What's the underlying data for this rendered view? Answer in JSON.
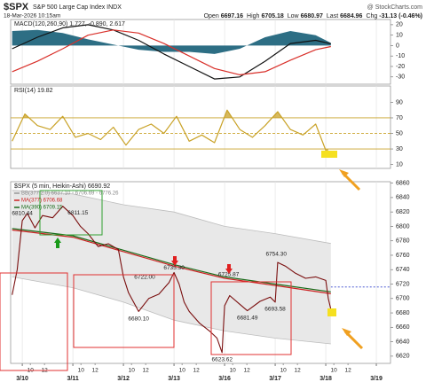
{
  "header": {
    "symbol": "$SPX",
    "name": "S&P 500 Large Cap Index INDX",
    "date": "18-Mar-2026 10:15am",
    "source": "@ StockCharts.com",
    "quote": [
      {
        "label": "Open",
        "value": 6697.16
      },
      {
        "label": "High",
        "value": 6705.18
      },
      {
        "label": "Low",
        "value": 6680.97
      },
      {
        "label": "Last",
        "value": 6684.96
      },
      {
        "label": "Chg",
        "value": -31.13
      }
    ],
    "chg_pct": "(-0.46%)"
  },
  "chart_data": [
    {
      "type": "line",
      "title": "MACD(120,260,90) 1.727, -0.890, 2.617",
      "x": [
        -0.2,
        0.3,
        0.8,
        1.3,
        1.8,
        2.3,
        2.8,
        3.3,
        3.8,
        4.3,
        4.8,
        5.3,
        5.8,
        6.1
      ],
      "ylim": [
        -37,
        25
      ],
      "yticks": [
        20,
        10,
        0,
        -10,
        -20,
        -30
      ],
      "grid": false,
      "series": [
        {
          "kind": "histogram",
          "color": "#2d6e84",
          "values": [
            14,
            15,
            12,
            6,
            1,
            -4,
            -6,
            -6,
            -8,
            -3,
            8,
            14,
            10,
            2.617
          ]
        },
        {
          "kind": "line",
          "color": "#111111",
          "values": [
            -3,
            8,
            17,
            20,
            15,
            5,
            -8,
            -20,
            -32,
            -30,
            -15,
            2,
            5,
            1.727
          ]
        },
        {
          "kind": "line",
          "color": "#d9302a",
          "values": [
            -25,
            -15,
            -3,
            10,
            15,
            12,
            2,
            -10,
            -22,
            -28,
            -25,
            -14,
            -4,
            -0.89
          ]
        }
      ]
    },
    {
      "type": "line",
      "title": "RSI(14) 19.82",
      "x": [
        -0.2,
        0.05,
        0.3,
        0.55,
        0.8,
        1.05,
        1.3,
        1.55,
        1.8,
        2.05,
        2.3,
        2.55,
        2.8,
        3.05,
        3.3,
        3.55,
        3.8,
        4.05,
        4.3,
        4.55,
        4.8,
        5.05,
        5.3,
        5.55,
        5.8,
        6.05
      ],
      "ylim": [
        5,
        111
      ],
      "yticks": [
        90,
        70,
        50,
        30,
        10
      ],
      "grid": false,
      "levels": [
        {
          "value": 70,
          "style": "solid"
        },
        {
          "value": 50,
          "style": "dashed"
        },
        {
          "value": 30,
          "style": "solid"
        }
      ],
      "level_color": "#c9a227",
      "series": [
        {
          "kind": "oscillator",
          "color": "#c9a227",
          "values": [
            40,
            75,
            60,
            55,
            72,
            45,
            50,
            42,
            58,
            35,
            55,
            62,
            50,
            72,
            40,
            48,
            38,
            80,
            55,
            45,
            60,
            78,
            55,
            48,
            62,
            19.82
          ]
        }
      ]
    },
    {
      "type": "line",
      "title": "$SPX (5 min, Heikin-Ashi) 6690.92",
      "xlim": [
        -0.23,
        7.28
      ],
      "xticks": [
        {
          "value": 0,
          "label": "3/10"
        },
        {
          "value": 1,
          "label": "3/11"
        },
        {
          "value": 2,
          "label": "3/12"
        },
        {
          "value": 3,
          "label": "3/13"
        },
        {
          "value": 4,
          "label": "3/16"
        },
        {
          "value": 5,
          "label": "3/17"
        },
        {
          "value": 6,
          "label": "3/18"
        },
        {
          "value": 7,
          "label": "3/19"
        }
      ],
      "minor_xticks": [
        {
          "value": 0.16,
          "label": "10"
        },
        {
          "value": 0.44,
          "label": "12"
        },
        {
          "value": 1.16,
          "label": "10"
        },
        {
          "value": 1.44,
          "label": "12"
        },
        {
          "value": 2.16,
          "label": "10"
        },
        {
          "value": 2.44,
          "label": "12"
        },
        {
          "value": 3.16,
          "label": "10"
        },
        {
          "value": 3.44,
          "label": "12"
        },
        {
          "value": 4.16,
          "label": "10"
        },
        {
          "value": 4.44,
          "label": "12"
        },
        {
          "value": 5.16,
          "label": "10"
        },
        {
          "value": 5.44,
          "label": "12"
        },
        {
          "value": 6.16,
          "label": "10"
        },
        {
          "value": 6.44,
          "label": "12"
        }
      ],
      "ylim": [
        6610,
        6862
      ],
      "yticks": [
        6860,
        6840,
        6820,
        6800,
        6780,
        6760,
        6740,
        6720,
        6700,
        6680,
        6660,
        6640,
        6620
      ],
      "grid": false,
      "x": [
        -0.2,
        -0.1,
        0,
        0.1,
        0.25,
        0.4,
        0.6,
        0.8,
        1.0,
        1.15,
        1.3,
        1.5,
        1.7,
        1.9,
        2.0,
        2.1,
        2.3,
        2.5,
        2.7,
        2.9,
        3.0,
        3.1,
        3.2,
        3.3,
        3.5,
        3.7,
        3.85,
        3.95,
        4.0,
        4.1,
        4.3,
        4.45,
        4.7,
        4.9,
        5.0,
        5.05,
        5.2,
        5.4,
        5.6,
        5.8,
        6.0,
        6.05,
        6.1
      ],
      "ref_line": {
        "value": 6716,
        "color": "#3344cc"
      },
      "series": [
        {
          "kind": "band",
          "name": "BB(377,2.0) 6637.10 - 6706.69 - 6776.26",
          "color": "#bdbdbd",
          "fill": "#e8e8e8",
          "x": [
            -0.2,
            1,
            2,
            3,
            4,
            5,
            6.1
          ],
          "upper": [
            6850,
            6845,
            6830,
            6820,
            6800,
            6790,
            6776.26
          ],
          "lower": [
            6730,
            6715,
            6695,
            6670,
            6655,
            6645,
            6637.1
          ]
        },
        {
          "kind": "line",
          "name": "MA(377) 6706.68",
          "color": "#cc2222",
          "x": [
            -0.2,
            1,
            2,
            3,
            4,
            5,
            6.1
          ],
          "values": [
            6795,
            6785,
            6765,
            6745,
            6728,
            6718,
            6706.68
          ]
        },
        {
          "kind": "line",
          "name": "MA(390) 6709.15",
          "color": "#1a6b1a",
          "x": [
            -0.2,
            1,
            2,
            3,
            4,
            5,
            6.1
          ],
          "values": [
            6797,
            6787,
            6767,
            6747,
            6730,
            6720,
            6709.15
          ]
        },
        {
          "kind": "price",
          "color": "#7a0e0e",
          "values": [
            6705,
            6740,
            6808,
            6818,
            6798,
            6815,
            6812,
            6828,
            6815,
            6800,
            6790,
            6772,
            6776,
            6768,
            6730,
            6708,
            6682,
            6700,
            6706,
            6722,
            6736,
            6720,
            6695,
            6682,
            6666,
            6655,
            6645,
            6625,
            6690,
            6704,
            6692,
            6683,
            6696,
            6702,
            6695,
            6750,
            6745,
            6735,
            6728,
            6730,
            6725,
            6700,
            6685
          ]
        }
      ],
      "annotations": [
        {
          "x": 0,
          "value": 6810.44,
          "label": "6810.44",
          "side": "above"
        },
        {
          "x": 1.1,
          "value": 6811.15,
          "label": "6811.15",
          "side": "above"
        },
        {
          "x": 2.42,
          "value": 6722,
          "label": "6722.00",
          "side": "above"
        },
        {
          "x": 3.0,
          "value": 6735.3,
          "label": "6735.30",
          "side": "above"
        },
        {
          "x": 4.08,
          "value": 6725.87,
          "label": "6725.87",
          "side": "above"
        },
        {
          "x": 5.02,
          "value": 6754.3,
          "label": "6754.30",
          "side": "above"
        },
        {
          "x": 2.3,
          "value": 6680.1,
          "label": "6680.10",
          "side": "below"
        },
        {
          "x": 4.45,
          "value": 6681.49,
          "label": "6681.49",
          "side": "below"
        },
        {
          "x": 5.0,
          "value": 6693.58,
          "label": "6693.58",
          "side": "below"
        },
        {
          "x": 3.95,
          "value": 6623.62,
          "label": "6623.62",
          "side": "below"
        }
      ]
    }
  ]
}
